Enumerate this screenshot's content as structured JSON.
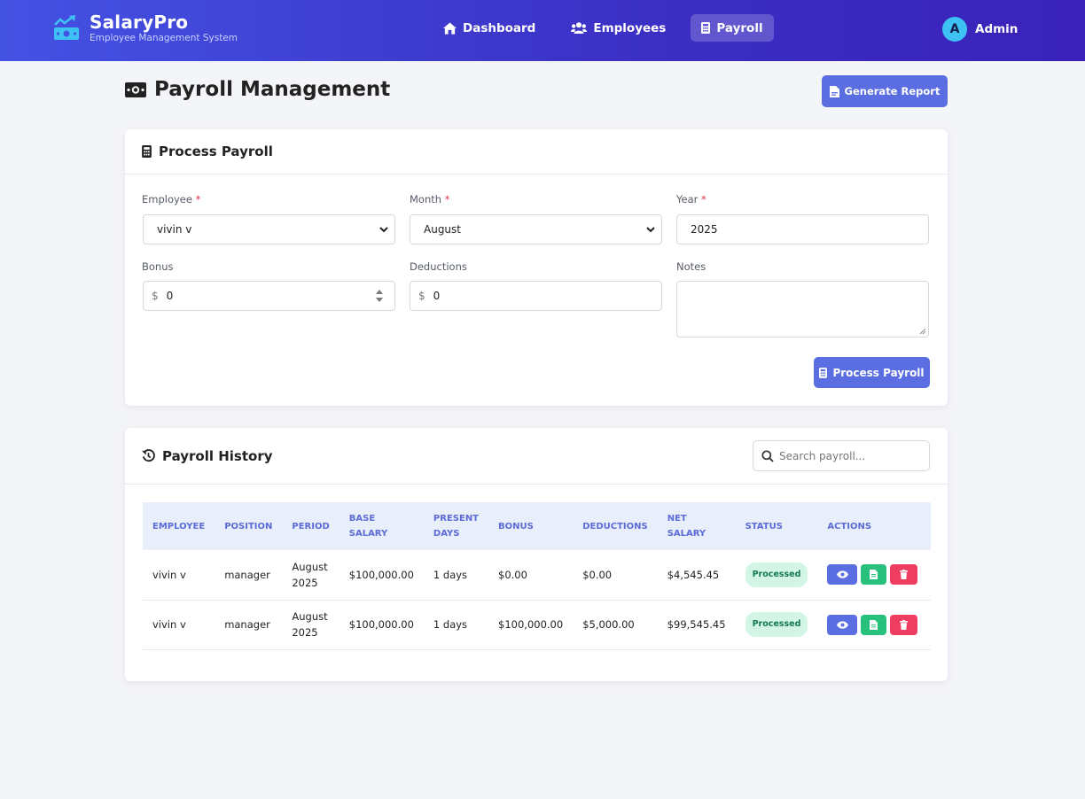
{
  "brand": {
    "title": "SalaryPro",
    "subtitle": "Employee Management System"
  },
  "nav": [
    {
      "label": "Dashboard",
      "icon": "home-icon"
    },
    {
      "label": "Employees",
      "icon": "users-icon"
    },
    {
      "label": "Payroll",
      "icon": "calculator-icon",
      "active": true
    }
  ],
  "user": {
    "initial": "A",
    "name": "Admin"
  },
  "page": {
    "title": "Payroll Management",
    "generate_report": "Generate Report"
  },
  "process": {
    "title": "Process Payroll",
    "employee_label": "Employee",
    "employee_value": "vivin v",
    "month_label": "Month",
    "month_value": "August",
    "year_label": "Year",
    "year_value": "2025",
    "bonus_label": "Bonus",
    "bonus_value": "0",
    "deductions_label": "Deductions",
    "deductions_value": "0",
    "notes_label": "Notes",
    "currency": "$",
    "required_mark": "*",
    "submit": "Process Payroll"
  },
  "history": {
    "title": "Payroll History",
    "search_placeholder": "Search payroll...",
    "columns": [
      "Employee",
      "Position",
      "Period",
      "Base Salary",
      "Present Days",
      "Bonus",
      "Deductions",
      "Net Salary",
      "Status",
      "Actions"
    ],
    "rows": [
      {
        "employee": "vivin v",
        "position": "manager",
        "period": "August 2025",
        "base": "$100,000.00",
        "days": "1 days",
        "bonus": "$0.00",
        "deductions": "$0.00",
        "net": "$4,545.45",
        "status": "Processed"
      },
      {
        "employee": "vivin v",
        "position": "manager",
        "period": "August 2025",
        "base": "$100,000.00",
        "days": "1 days",
        "bonus": "$100,000.00",
        "deductions": "$5,000.00",
        "net": "$99,545.45",
        "status": "Processed"
      }
    ]
  },
  "colors": {
    "primary": "#5b6ee1",
    "success": "#27c07d",
    "danger": "#ef3c61",
    "nav_gradient_start": "#4452e3",
    "nav_gradient_end": "#3a22b8"
  }
}
